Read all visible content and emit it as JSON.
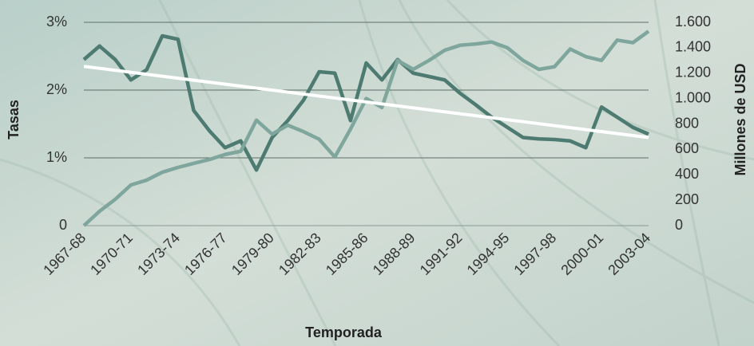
{
  "chart_data": {
    "type": "line",
    "x_label": "Temporada",
    "y_label": "Tasas",
    "y2_label": "Millones de USD",
    "categories": [
      "1967-68",
      null,
      null,
      "1970-71",
      null,
      null,
      "1973-74",
      null,
      null,
      "1976-77",
      null,
      null,
      "1979-80",
      null,
      null,
      "1982-83",
      null,
      null,
      "1985-86",
      null,
      null,
      "1988-89",
      null,
      null,
      "1991-92",
      null,
      null,
      "1994-95",
      null,
      null,
      "1997-98",
      null,
      null,
      "2000-01",
      null,
      null,
      "2003-04"
    ],
    "series": [
      {
        "color": "#4e7b71",
        "values": [
          2.45,
          2.65,
          2.45,
          2.15,
          2.3,
          2.8,
          2.75,
          1.7,
          1.4,
          1.15,
          1.25,
          0.82,
          1.3,
          1.55,
          1.85,
          2.27,
          2.25,
          1.55,
          2.4,
          2.15,
          2.45,
          2.25,
          2.2,
          2.15,
          1.95,
          1.78,
          1.6,
          1.45,
          1.3,
          1.28,
          1.27,
          1.25,
          1.15,
          1.75,
          1.6,
          1.45,
          1.35
        ]
      },
      {
        "color": "#7ea69c",
        "axis": "y2",
        "values": [
          0,
          113,
          207,
          320,
          358,
          420,
          458,
          490,
          520,
          560,
          585,
          830,
          720,
          790,
          740,
          680,
          540,
          760,
          1000,
          930,
          1300,
          1230,
          1300,
          1380,
          1420,
          1430,
          1445,
          1400,
          1300,
          1230,
          1250,
          1390,
          1330,
          1300,
          1460,
          1440,
          1530
        ]
      }
    ],
    "trend": {
      "color": "#ffffff",
      "values": [
        2.35,
        1.3
      ]
    },
    "ylim": [
      0,
      3
    ],
    "yticks": [
      0,
      {
        "value": 1,
        "label": "1%"
      },
      {
        "value": 2,
        "label": "2%"
      },
      {
        "value": 3,
        "label": "3%"
      }
    ],
    "y2lim": [
      0,
      1600
    ],
    "y2ticks": [
      0,
      200,
      400,
      600,
      800,
      {
        "value": 1000,
        "label": "1.000"
      },
      {
        "value": 1200,
        "label": "1.200"
      },
      {
        "value": 1400,
        "label": "1.400"
      },
      {
        "value": 1600,
        "label": "1.600"
      }
    ],
    "grid": true
  }
}
